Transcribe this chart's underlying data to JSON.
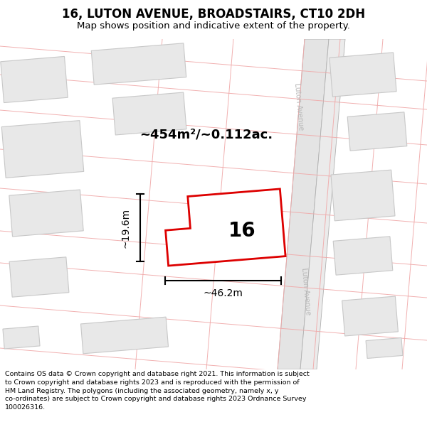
{
  "title": "16, LUTON AVENUE, BROADSTAIRS, CT10 2DH",
  "subtitle": "Map shows position and indicative extent of the property.",
  "footer": "Contains OS data © Crown copyright and database right 2021. This information is subject\nto Crown copyright and database rights 2023 and is reproduced with the permission of\nHM Land Registry. The polygons (including the associated geometry, namely x, y\nco-ordinates) are subject to Crown copyright and database rights 2023 Ordnance Survey\n100026316.",
  "area_label": "~454m²/~0.112ac.",
  "width_label": "~46.2m",
  "height_label": "~19.6m",
  "property_number": "16",
  "bg_color": "#ffffff",
  "road_fill": "#e8e8e8",
  "road_edge": "#b8b8b8",
  "building_fill": "#e8e8e8",
  "building_edge": "#c8c8c8",
  "property_fill": "#ffffff",
  "property_outline": "#dd0000",
  "pink": "#f0a8a8",
  "street_color": "#b8b8b8",
  "title_fontsize": 12,
  "subtitle_fontsize": 9.5,
  "footer_fontsize": 6.8
}
